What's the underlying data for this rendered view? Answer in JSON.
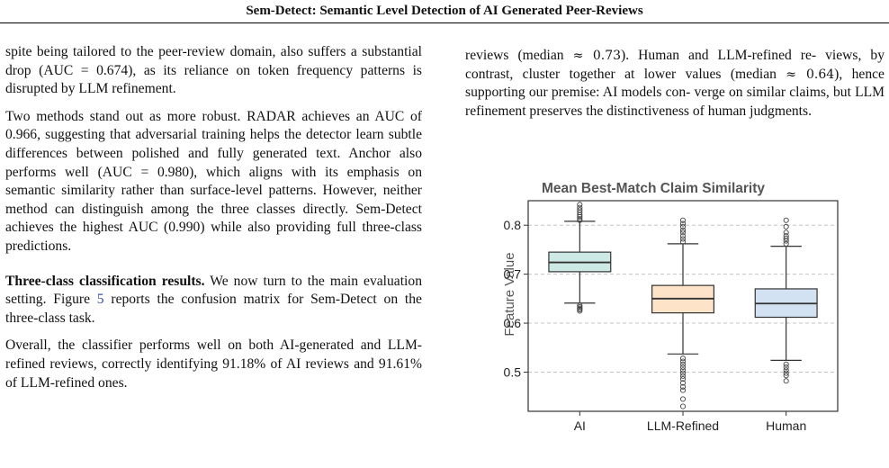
{
  "header": {
    "title": "Sem-Detect: Semantic Level Detection of AI Generated Peer-Reviews"
  },
  "left_column": {
    "p1": "spite being tailored to the peer-review domain, also suffers a substantial drop (AUC = 0.674), as its reliance on token frequency patterns is disrupted by LLM refinement.",
    "p2": "Two methods stand out as more robust. RADAR achieves an AUC of 0.966, suggesting that adversarial training helps the detector learn subtle differences between polished and fully generated text. Anchor also performs well (AUC = 0.980), which aligns with its emphasis on semantic similarity rather than surface-level patterns. However, neither method can distinguish among the three classes directly. Sem-Detect achieves the highest AUC (0.990) while also providing full three-class predictions.",
    "p3_heading": "Three-class classification results.",
    "p3_text_a": " We now turn to the main evaluation setting. Figure ",
    "p3_link": "5",
    "p3_text_b": " reports the confusion matrix for Sem-Detect on the three-class task.",
    "p4": "Overall, the classifier performs well on both AI-generated and LLM-refined reviews, correctly identifying 91.18% of AI reviews and 91.61% of LLM-refined ones."
  },
  "right_column": {
    "t1": "reviews (median ",
    "approx1": "≈ 0.73",
    "t2": "). Human and LLM-refined re- views, by contrast, cluster together at lower values (median ",
    "approx2": "≈ 0.64",
    "t3": "), hence supporting our premise: AI models con- verge on similar claims, but LLM refinement preserves the distinctiveness of human judgments."
  },
  "chart_data": {
    "type": "boxplot",
    "title": "Mean Best-Match Claim Similarity",
    "xlabel": "",
    "ylabel": "Feature Value",
    "ylim": [
      0.42,
      0.85
    ],
    "yticks": [
      0.5,
      0.6,
      0.7,
      0.8
    ],
    "ytick_labels": [
      "0.5",
      "0.6",
      "0.7",
      "0.8"
    ],
    "grid": "y-dashed",
    "categories": [
      "AI",
      "LLM-Refined",
      "Human"
    ],
    "boxes": [
      {
        "category": "AI",
        "whislo": 0.641,
        "q1": 0.705,
        "median": 0.724,
        "q3": 0.745,
        "whishi": 0.808,
        "fill": "#cde9e6",
        "outliers": [
          0.625,
          0.628,
          0.63,
          0.633,
          0.636,
          0.81,
          0.813,
          0.817,
          0.821,
          0.826,
          0.831,
          0.836,
          0.842
        ]
      },
      {
        "category": "LLM-Refined",
        "whislo": 0.537,
        "q1": 0.621,
        "median": 0.65,
        "q3": 0.677,
        "whishi": 0.762,
        "fill": "#fde3c8",
        "outliers": [
          0.528,
          0.522,
          0.516,
          0.51,
          0.504,
          0.498,
          0.492,
          0.486,
          0.478,
          0.47,
          0.463,
          0.445,
          0.43,
          0.766,
          0.772,
          0.778,
          0.785,
          0.79,
          0.797,
          0.803,
          0.81
        ]
      },
      {
        "category": "Human",
        "whislo": 0.524,
        "q1": 0.612,
        "median": 0.64,
        "q3": 0.67,
        "whishi": 0.757,
        "fill": "#d3e2f2",
        "outliers": [
          0.516,
          0.51,
          0.504,
          0.498,
          0.493,
          0.482,
          0.762,
          0.768,
          0.773,
          0.778,
          0.785,
          0.797,
          0.81
        ]
      }
    ]
  }
}
